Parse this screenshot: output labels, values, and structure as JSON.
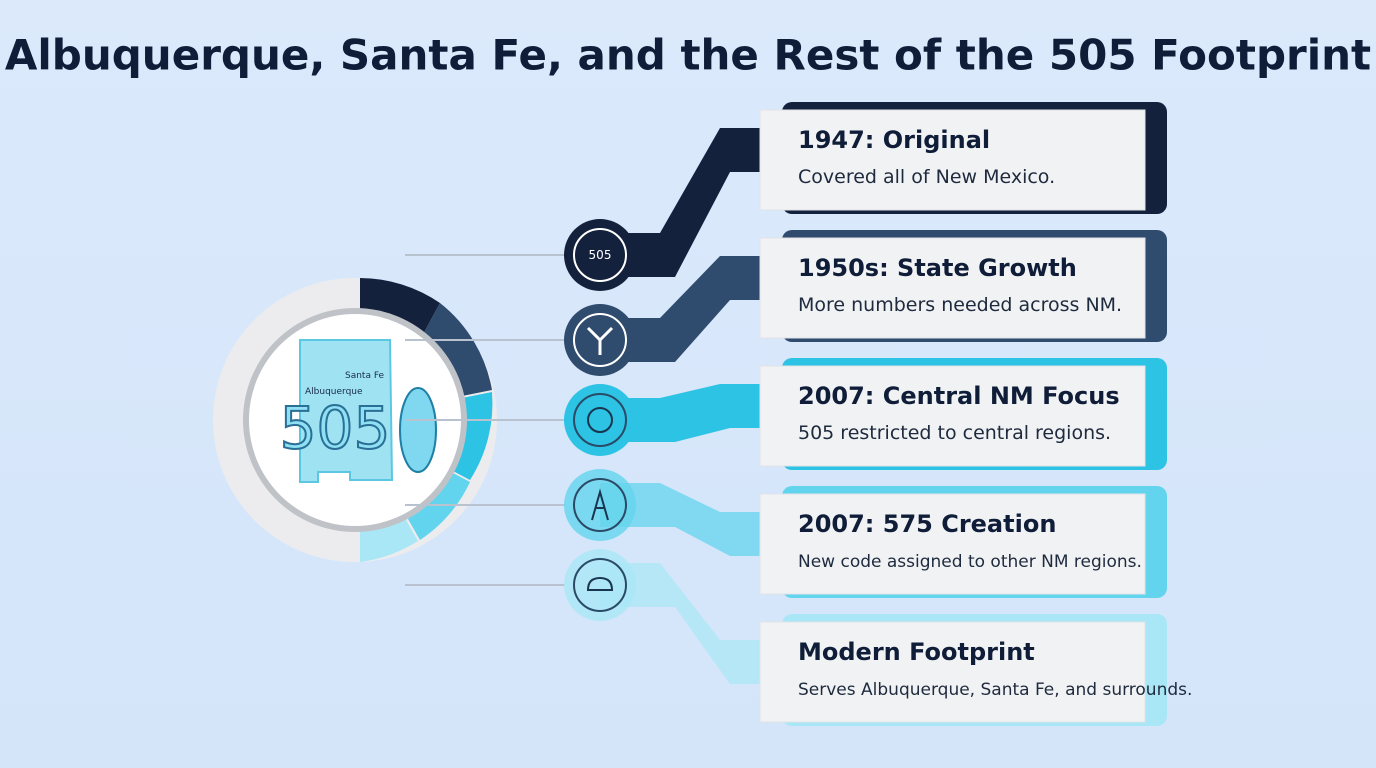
{
  "header": {
    "title": "Albuquerque, Santa Fe, and the Rest of the 505 Footprint"
  },
  "emblem": {
    "code": "505",
    "cities": [
      "Santa Fe",
      "Albuquerque"
    ]
  },
  "icon_label": "505",
  "steps": [
    {
      "title": "1947: Original",
      "text": "Covered all of New Mexico."
    },
    {
      "title": "1950s: State Growth",
      "text": "More numbers needed across NM."
    },
    {
      "title": "2007: Central NM Focus",
      "text": "505 restricted to central regions."
    },
    {
      "title": "2007: 575 Creation",
      "text": "New code assigned to other NM regions."
    },
    {
      "title": "Modern Footprint",
      "text": "Serves Albuquerque, Santa Fe, and surrounds."
    }
  ]
}
